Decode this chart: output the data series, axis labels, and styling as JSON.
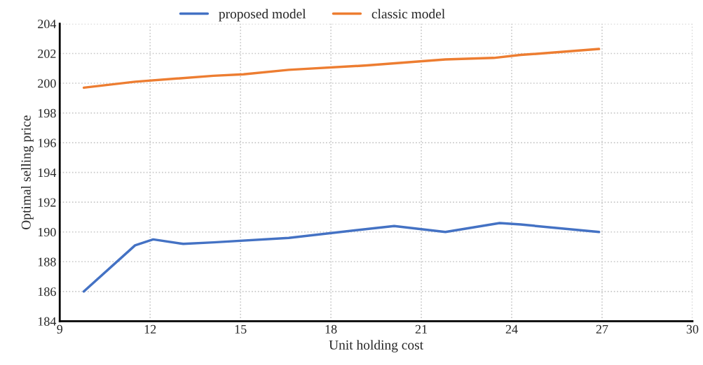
{
  "chart_data": {
    "type": "line",
    "xlabel": "Unit holding cost",
    "ylabel": "Optimal selling price",
    "xlim": [
      9,
      30
    ],
    "xticks": [
      9,
      12,
      15,
      18,
      21,
      24,
      27,
      30
    ],
    "ylim": [
      184,
      204
    ],
    "yticks": [
      184,
      186,
      188,
      190,
      192,
      194,
      196,
      198,
      200,
      202,
      204
    ],
    "grid": true,
    "legend": "top",
    "marker": "none",
    "line_style": "solid",
    "series": [
      {
        "name": "proposed model",
        "color": "#4472c4",
        "x": [
          9.8,
          11.5,
          12.1,
          13.1,
          14.1,
          16.6,
          19.2,
          20.1,
          21.8,
          23.6,
          24.3,
          26.9
        ],
        "values": [
          186.0,
          189.1,
          189.5,
          189.2,
          189.3,
          189.6,
          190.2,
          190.4,
          190.0,
          190.6,
          190.5,
          190.0
        ]
      },
      {
        "name": "classic model",
        "color": "#ed7d31",
        "x": [
          9.8,
          11.5,
          14.1,
          15.1,
          16.6,
          19.2,
          21.8,
          23.4,
          24.3,
          26.9
        ],
        "values": [
          199.7,
          200.1,
          200.5,
          200.6,
          200.9,
          201.2,
          201.6,
          201.7,
          201.9,
          202.3
        ]
      }
    ]
  }
}
